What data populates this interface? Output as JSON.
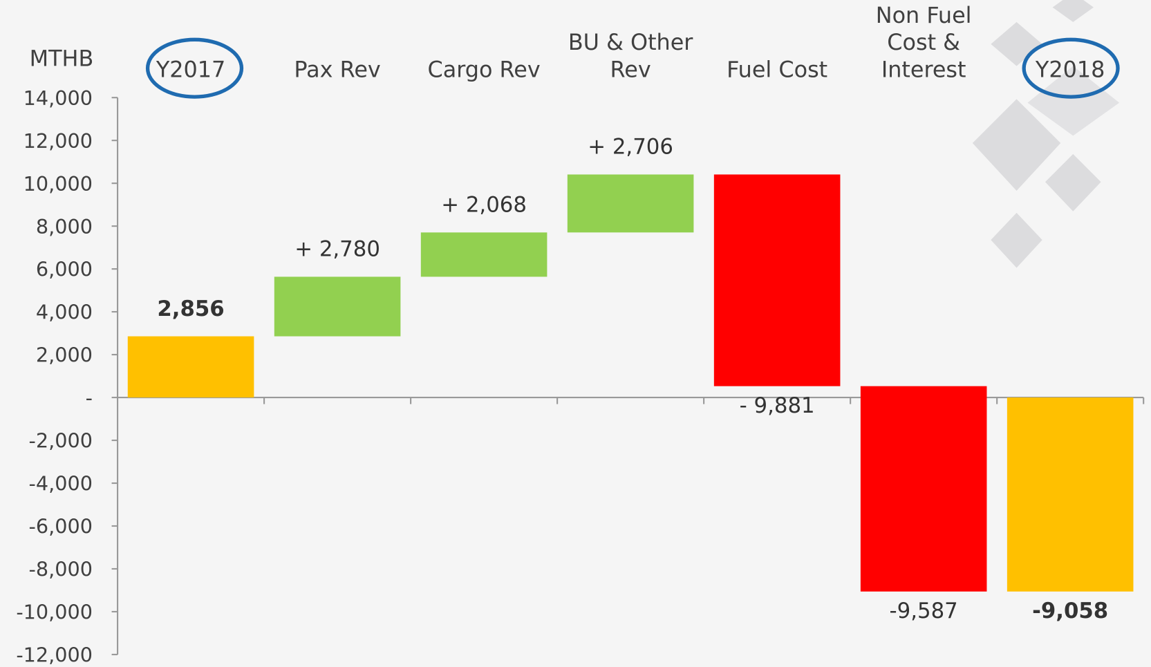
{
  "chart_data": {
    "type": "waterfall",
    "y_axis_label": "MTHB",
    "categories": [
      [
        "Y2017"
      ],
      [
        "Pax Rev"
      ],
      [
        "Cargo Rev"
      ],
      [
        "BU & Other",
        "Rev"
      ],
      [
        "Fuel Cost"
      ],
      [
        "Non Fuel",
        "Cost &",
        "Interest"
      ],
      [
        "Y2018"
      ]
    ],
    "values": [
      2856,
      2780,
      2068,
      2706,
      -9881,
      -9587,
      -9058
    ],
    "value_labels": [
      "2,856",
      "+ 2,780",
      "+ 2,068",
      "+ 2,706",
      "- 9,881",
      "-9,587",
      "-9,058"
    ],
    "is_total": [
      true,
      false,
      false,
      false,
      false,
      false,
      true
    ],
    "colors": [
      "#ffc000",
      "#92d050",
      "#92d050",
      "#92d050",
      "#ff0000",
      "#ff0000",
      "#ffc000"
    ],
    "ylim": [
      -12000,
      14000
    ],
    "yticks": [
      {
        "value": -12000,
        "label": "-12,000"
      },
      {
        "value": -10000,
        "label": "-10,000"
      },
      {
        "value": -8000,
        "label": "-8,000"
      },
      {
        "value": -6000,
        "label": "-6,000"
      },
      {
        "value": -4000,
        "label": "-4,000"
      },
      {
        "value": -2000,
        "label": "-2,000"
      },
      {
        "value": 0,
        "label": "-"
      },
      {
        "value": 2000,
        "label": "2,000"
      },
      {
        "value": 4000,
        "label": "4,000"
      },
      {
        "value": 6000,
        "label": "6,000"
      },
      {
        "value": 8000,
        "label": "8,000"
      },
      {
        "value": 10000,
        "label": "10,000"
      },
      {
        "value": 12000,
        "label": "12,000"
      },
      {
        "value": 14000,
        "label": "14,000"
      }
    ],
    "grid": false
  }
}
